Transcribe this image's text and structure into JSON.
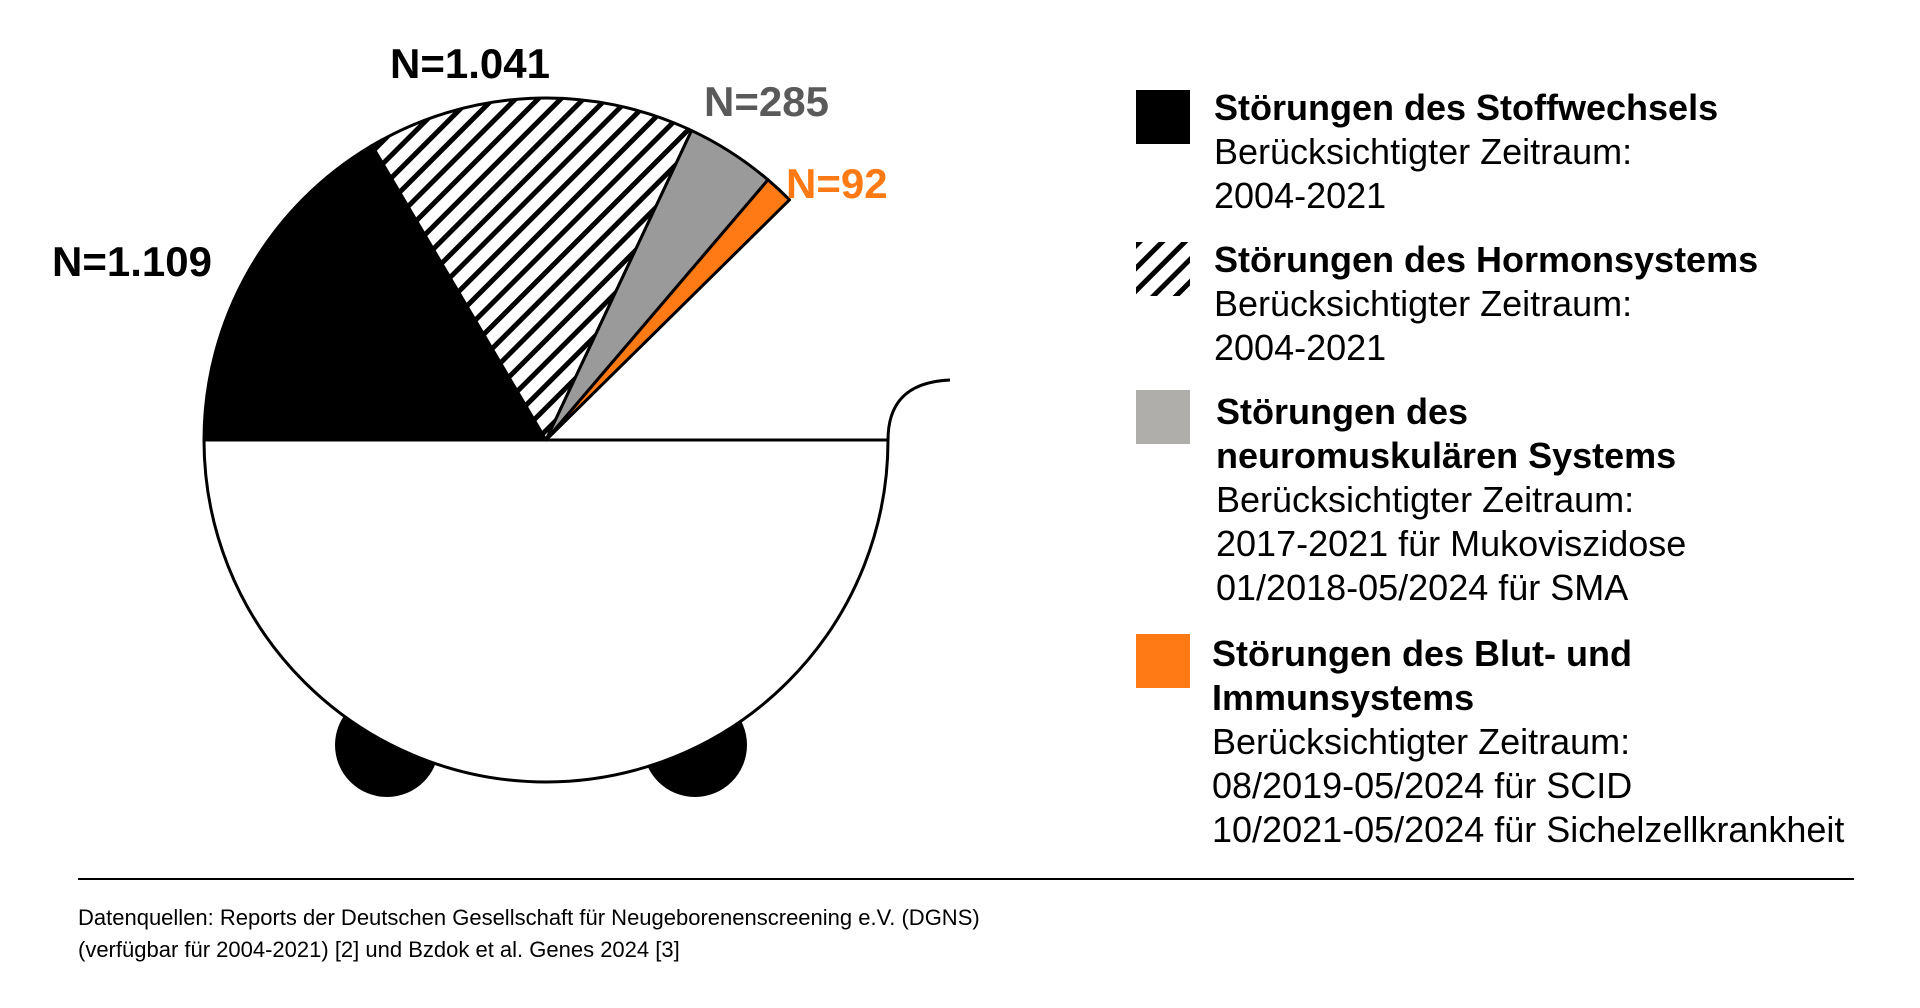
{
  "chart_data": {
    "type": "pie",
    "slices": [
      {
        "value": 1109,
        "label": "N=1.109",
        "color": "#000000",
        "fill": "solid"
      },
      {
        "value": 1041,
        "label": "N=1.041",
        "color": "#000000",
        "fill": "hatch"
      },
      {
        "value": 285,
        "label": "N=285",
        "color": "#9a9a9a",
        "fill": "solid",
        "label_color": "#5a5a5a"
      },
      {
        "value": 92,
        "label": "N=92",
        "color": "#ff7a14",
        "fill": "solid",
        "label_color": "#ff7a14"
      }
    ],
    "legend": [
      {
        "swatch": "solid-black",
        "title": "Störungen des Stoffwechsels",
        "lines": "Berücksichtigter Zeitraum:\n2004-2021"
      },
      {
        "swatch": "hatch",
        "title": "Störungen des Hormonsystems",
        "lines": "Berücksichtigter Zeitraum:\n2004-2021"
      },
      {
        "swatch": "solid-grey",
        "color": "#b0aeab",
        "title": "Störungen des\nneuromuskulären Systems",
        "lines": "Berücksichtigter Zeitraum:\n2017-2021 für Mukoviszidose\n01/2018-05/2024 für SMA"
      },
      {
        "swatch": "solid-orange",
        "color": "#ff7a14",
        "title": "Störungen des Blut- und\nImmunsystems",
        "lines": "Berücksichtigter Zeitraum:\n08/2019-05/2024 für SCID\n10/2021-05/2024 für Sichelzellkrankheit"
      }
    ],
    "legend_position": "right"
  },
  "source_text": "Datenquellen: Reports der Deutschen Gesellschaft für Neugeborenenscreening e.V. (DGNS)\n(verfügbar für 2004-2021) [2] und Bzdok et al. Genes 2024 [3]"
}
